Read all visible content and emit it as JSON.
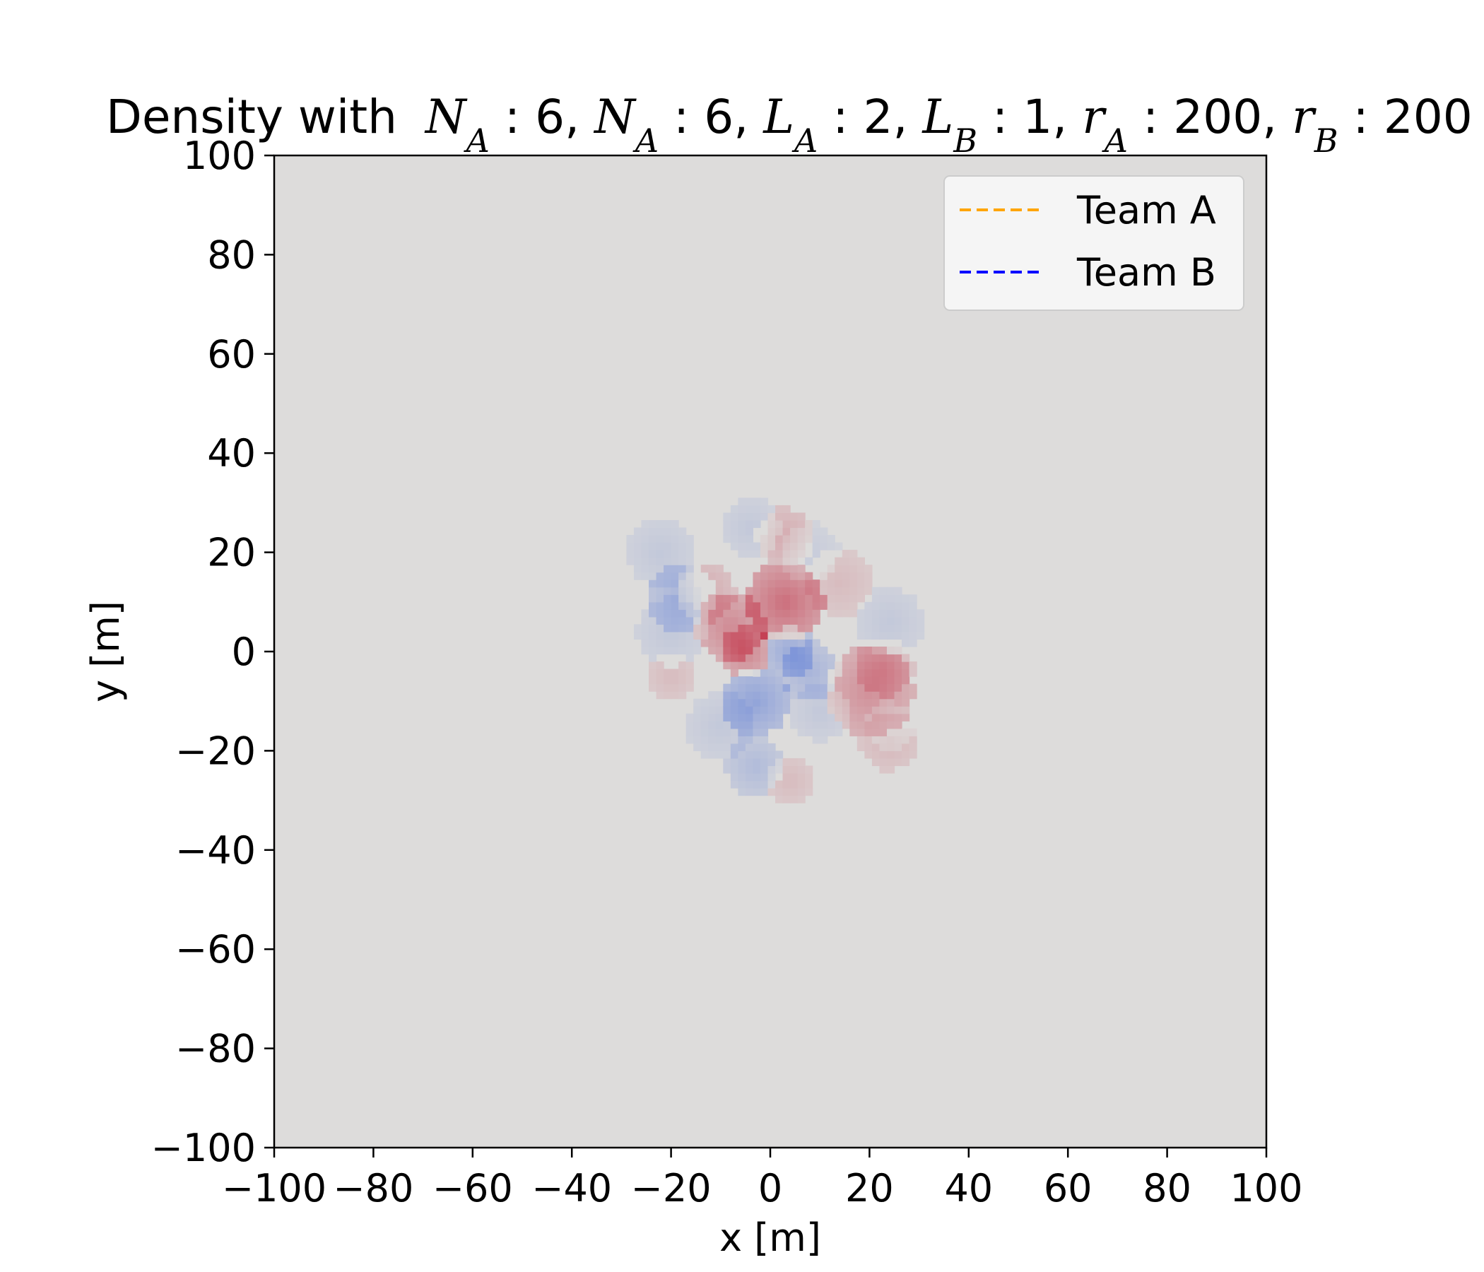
{
  "chart_data": {
    "type": "heatmap",
    "title": "Density with",
    "title_math": {
      "terms": [
        {
          "base": "N",
          "sub": "A",
          "value": "6"
        },
        {
          "base": "N",
          "sub": "A",
          "value": "6"
        },
        {
          "base": "L",
          "sub": "A",
          "value": "2"
        },
        {
          "base": "L",
          "sub": "B",
          "value": "1"
        },
        {
          "base": "r",
          "sub": "A",
          "value": "200"
        },
        {
          "base": "r",
          "sub": "B",
          "value": "200"
        }
      ]
    },
    "xlabel": "x [m]",
    "ylabel": "y [m]",
    "xlim": [
      -100,
      100
    ],
    "ylim": [
      -100,
      100
    ],
    "xticks": [
      -100,
      -80,
      -60,
      -40,
      -20,
      0,
      20,
      40,
      60,
      80,
      100
    ],
    "yticks": [
      -100,
      -80,
      -60,
      -40,
      -20,
      0,
      20,
      40,
      60,
      80,
      100
    ],
    "xtick_labels": [
      "−100",
      "−80",
      "−60",
      "−40",
      "−20",
      "0",
      "20",
      "40",
      "60",
      "80",
      "100"
    ],
    "ytick_labels": [
      "−100",
      "−80",
      "−60",
      "−40",
      "−20",
      "0",
      "20",
      "40",
      "60",
      "80",
      "100"
    ],
    "grid": false,
    "legend_position": "top-right",
    "legend": [
      {
        "label": "Team A",
        "color": "#FFA500",
        "style": "dashed"
      },
      {
        "label": "Team B",
        "color": "#0000FF",
        "style": "dashed"
      }
    ],
    "colormap": "coolwarm",
    "background_color": "#DDDCDB",
    "blobs": [
      {
        "team": "A",
        "x": 3,
        "y": 10,
        "r": 8,
        "intensity": 1.0
      },
      {
        "team": "A",
        "x": -8,
        "y": 5,
        "r": 7,
        "intensity": 0.75
      },
      {
        "team": "A",
        "x": -5,
        "y": 0,
        "r": 5,
        "intensity": 0.8
      },
      {
        "team": "A",
        "x": 20,
        "y": -8,
        "r": 9,
        "intensity": 0.7
      },
      {
        "team": "A",
        "x": 3,
        "y": 23,
        "r": 6,
        "intensity": 0.45
      },
      {
        "team": "A",
        "x": 14,
        "y": 14,
        "r": 7,
        "intensity": 0.3
      },
      {
        "team": "A",
        "x": -20,
        "y": -5,
        "r": 5,
        "intensity": 0.3
      },
      {
        "team": "A",
        "x": 24,
        "y": -18,
        "r": 6,
        "intensity": 0.35
      },
      {
        "team": "A",
        "x": 4,
        "y": -26,
        "r": 5,
        "intensity": 0.3
      },
      {
        "team": "A",
        "x": 23,
        "y": -3,
        "r": 6,
        "intensity": 0.4
      },
      {
        "team": "A",
        "x": -13,
        "y": 12,
        "r": 6,
        "intensity": 0.45
      },
      {
        "team": "B",
        "x": -18,
        "y": 11,
        "r": 7,
        "intensity": 0.6
      },
      {
        "team": "B",
        "x": 4,
        "y": 0,
        "r": 5,
        "intensity": 0.75
      },
      {
        "team": "B",
        "x": 8,
        "y": -4,
        "r": 6,
        "intensity": 0.6
      },
      {
        "team": "B",
        "x": -3,
        "y": -10,
        "r": 7,
        "intensity": 0.85
      },
      {
        "team": "B",
        "x": -3,
        "y": -23,
        "r": 6,
        "intensity": 0.5
      },
      {
        "team": "B",
        "x": -22,
        "y": 20,
        "r": 7,
        "intensity": 0.3
      },
      {
        "team": "B",
        "x": -20,
        "y": 4,
        "r": 7,
        "intensity": 0.3
      },
      {
        "team": "B",
        "x": 24,
        "y": 6,
        "r": 7,
        "intensity": 0.3
      },
      {
        "team": "B",
        "x": -10,
        "y": -15,
        "r": 7,
        "intensity": 0.3
      },
      {
        "team": "B",
        "x": 10,
        "y": -12,
        "r": 6,
        "intensity": 0.3
      },
      {
        "team": "B",
        "x": 8,
        "y": 20,
        "r": 6,
        "intensity": 0.25
      },
      {
        "team": "B",
        "x": -4,
        "y": 25,
        "r": 6,
        "intensity": 0.3
      },
      {
        "team": "B",
        "x": 24,
        "y": -15,
        "r": 5,
        "intensity": 0.25
      }
    ]
  }
}
